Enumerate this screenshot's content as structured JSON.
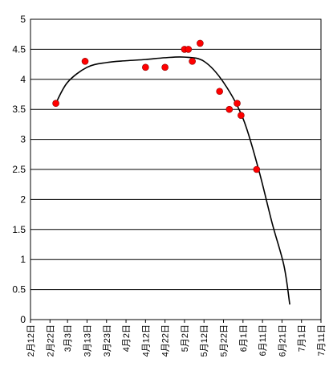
{
  "chart_data": {
    "type": "scatter",
    "x_tick_labels": [
      "2月12日",
      "2月22日",
      "3月3日",
      "3月13日",
      "3月23日",
      "4月2日",
      "4月12日",
      "4月22日",
      "5月2日",
      "5月12日",
      "5月22日",
      "6月1日",
      "6月11日",
      "6月21日",
      "7月1日",
      "7月11日"
    ],
    "x_tick_values": [
      "2019-02-12",
      "2019-02-22",
      "2019-03-03",
      "2019-03-13",
      "2019-03-23",
      "2019-04-02",
      "2019-04-12",
      "2019-04-22",
      "2019-05-02",
      "2019-05-12",
      "2019-05-22",
      "2019-06-01",
      "2019-06-11",
      "2019-06-21",
      "2019-07-01",
      "2019-07-11"
    ],
    "y_tick_labels": [
      "0",
      "0.5",
      "1",
      "1.5",
      "2",
      "2.5",
      "3",
      "3.5",
      "4",
      "4.5",
      "5"
    ],
    "ylim": [
      0,
      5
    ],
    "xlim": [
      "2019-02-12",
      "2019-07-11"
    ],
    "grid": "horizontal",
    "series": [
      {
        "kind": "points",
        "color": "#ff0000",
        "points": [
          {
            "x": "2019-02-25",
            "y": 3.6
          },
          {
            "x": "2019-03-12",
            "y": 4.3
          },
          {
            "x": "2019-04-12",
            "y": 4.2
          },
          {
            "x": "2019-04-22",
            "y": 4.2
          },
          {
            "x": "2019-05-02",
            "y": 4.5
          },
          {
            "x": "2019-05-04",
            "y": 4.5
          },
          {
            "x": "2019-05-06",
            "y": 4.3
          },
          {
            "x": "2019-05-10",
            "y": 4.6
          },
          {
            "x": "2019-05-20",
            "y": 3.8
          },
          {
            "x": "2019-05-25",
            "y": 3.5
          },
          {
            "x": "2019-05-29",
            "y": 3.6
          },
          {
            "x": "2019-05-31",
            "y": 3.4
          },
          {
            "x": "2019-06-08",
            "y": 2.5
          }
        ]
      },
      {
        "kind": "curve",
        "color": "#000000",
        "points": [
          {
            "x": "2019-02-25",
            "y": 3.6
          },
          {
            "x": "2019-03-03",
            "y": 3.95
          },
          {
            "x": "2019-03-13",
            "y": 4.2
          },
          {
            "x": "2019-03-23",
            "y": 4.28
          },
          {
            "x": "2019-04-02",
            "y": 4.31
          },
          {
            "x": "2019-04-12",
            "y": 4.33
          },
          {
            "x": "2019-04-22",
            "y": 4.36
          },
          {
            "x": "2019-05-02",
            "y": 4.37
          },
          {
            "x": "2019-05-12",
            "y": 4.3
          },
          {
            "x": "2019-05-22",
            "y": 3.95
          },
          {
            "x": "2019-06-01",
            "y": 3.35
          },
          {
            "x": "2019-06-09",
            "y": 2.5
          },
          {
            "x": "2019-06-16",
            "y": 1.6
          },
          {
            "x": "2019-06-22",
            "y": 0.9
          },
          {
            "x": "2019-06-25",
            "y": 0.25
          }
        ]
      }
    ]
  }
}
